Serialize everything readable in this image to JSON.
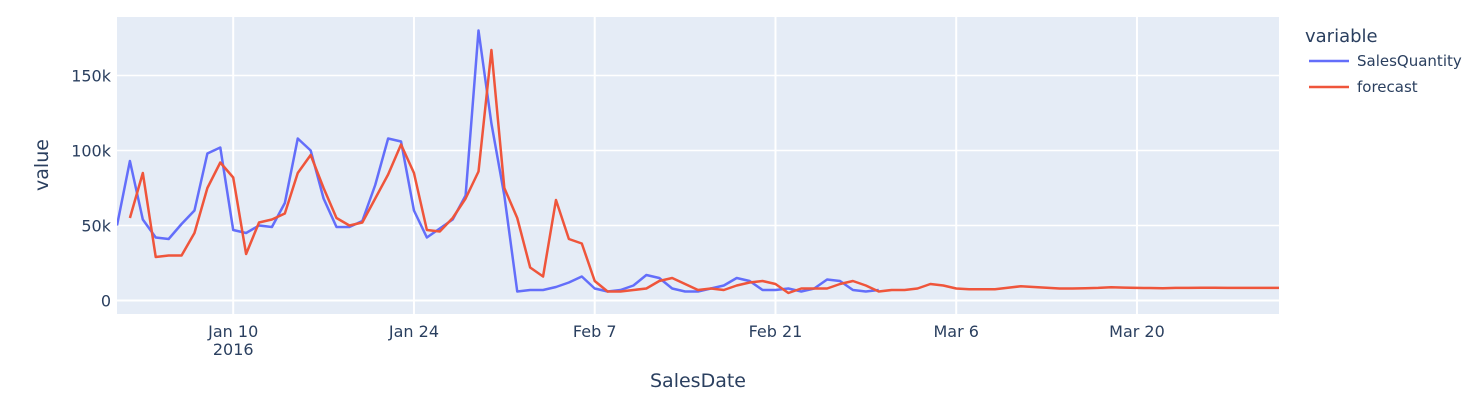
{
  "chart_data": {
    "type": "line",
    "xlabel": "SalesDate",
    "ylabel": "value",
    "x_start": "2016-01-01",
    "x_end": "2016-03-31",
    "ylim": [
      -9000,
      189000
    ],
    "x_ticks": [
      {
        "date": "2016-01-10",
        "label": "Jan 10",
        "sublabel": "2016"
      },
      {
        "date": "2016-01-24",
        "label": "Jan 24",
        "sublabel": ""
      },
      {
        "date": "2016-02-07",
        "label": "Feb 7",
        "sublabel": ""
      },
      {
        "date": "2016-02-21",
        "label": "Feb 21",
        "sublabel": ""
      },
      {
        "date": "2016-03-06",
        "label": "Mar 6",
        "sublabel": ""
      },
      {
        "date": "2016-03-20",
        "label": "Mar 20",
        "sublabel": ""
      }
    ],
    "y_ticks": [
      {
        "value": 0,
        "label": "0"
      },
      {
        "value": 50000,
        "label": "50k"
      },
      {
        "value": 100000,
        "label": "100k"
      },
      {
        "value": 150000,
        "label": "150k"
      }
    ],
    "grid": true,
    "legend": {
      "title": "variable",
      "placement": "top-right"
    },
    "series": [
      {
        "name": "SalesQuantity",
        "color": "#636efa",
        "x": [
          "2016-01-01",
          "2016-01-02",
          "2016-01-03",
          "2016-01-04",
          "2016-01-05",
          "2016-01-06",
          "2016-01-07",
          "2016-01-08",
          "2016-01-09",
          "2016-01-10",
          "2016-01-11",
          "2016-01-12",
          "2016-01-13",
          "2016-01-14",
          "2016-01-15",
          "2016-01-16",
          "2016-01-17",
          "2016-01-18",
          "2016-01-19",
          "2016-01-20",
          "2016-01-21",
          "2016-01-22",
          "2016-01-23",
          "2016-01-24",
          "2016-01-25",
          "2016-01-26",
          "2016-01-27",
          "2016-01-28",
          "2016-01-29",
          "2016-01-30",
          "2016-01-31",
          "2016-02-01",
          "2016-02-02",
          "2016-02-03",
          "2016-02-04",
          "2016-02-05",
          "2016-02-06",
          "2016-02-07",
          "2016-02-08",
          "2016-02-09",
          "2016-02-10",
          "2016-02-11",
          "2016-02-12",
          "2016-02-13",
          "2016-02-14",
          "2016-02-15",
          "2016-02-16",
          "2016-02-17",
          "2016-02-18",
          "2016-02-19",
          "2016-02-20",
          "2016-02-21",
          "2016-02-22",
          "2016-02-23",
          "2016-02-24",
          "2016-02-25",
          "2016-02-26",
          "2016-02-27",
          "2016-02-28",
          "2016-02-29"
        ],
        "y": [
          50000,
          93000,
          54000,
          42000,
          41000,
          51000,
          60000,
          98000,
          102000,
          47000,
          45000,
          50000,
          49000,
          65000,
          108000,
          100000,
          68000,
          49000,
          49000,
          53000,
          77000,
          108000,
          106000,
          60000,
          42000,
          48000,
          54000,
          70000,
          180000,
          118000,
          70000,
          6000,
          7000,
          7000,
          9000,
          12000,
          16000,
          8000,
          6000,
          7000,
          10000,
          17000,
          15000,
          8000,
          6000,
          6000,
          8000,
          10000,
          15000,
          13000,
          7000,
          7000,
          8000,
          6000,
          8000,
          14000,
          13000,
          7000,
          6000,
          7000
        ]
      },
      {
        "name": "forecast",
        "color": "#ef553b",
        "x": [
          "2016-01-02",
          "2016-01-03",
          "2016-01-04",
          "2016-01-05",
          "2016-01-06",
          "2016-01-07",
          "2016-01-08",
          "2016-01-09",
          "2016-01-10",
          "2016-01-11",
          "2016-01-12",
          "2016-01-13",
          "2016-01-14",
          "2016-01-15",
          "2016-01-16",
          "2016-01-17",
          "2016-01-18",
          "2016-01-19",
          "2016-01-20",
          "2016-01-21",
          "2016-01-22",
          "2016-01-23",
          "2016-01-24",
          "2016-01-25",
          "2016-01-26",
          "2016-01-27",
          "2016-01-28",
          "2016-01-29",
          "2016-01-30",
          "2016-01-31",
          "2016-02-01",
          "2016-02-02",
          "2016-02-03",
          "2016-02-04",
          "2016-02-05",
          "2016-02-06",
          "2016-02-07",
          "2016-02-08",
          "2016-02-09",
          "2016-02-10",
          "2016-02-11",
          "2016-02-12",
          "2016-02-13",
          "2016-02-14",
          "2016-02-15",
          "2016-02-16",
          "2016-02-17",
          "2016-02-18",
          "2016-02-19",
          "2016-02-20",
          "2016-02-21",
          "2016-02-22",
          "2016-02-23",
          "2016-02-24",
          "2016-02-25",
          "2016-02-26",
          "2016-02-27",
          "2016-02-28",
          "2016-02-29",
          "2016-03-01",
          "2016-03-02",
          "2016-03-03",
          "2016-03-04",
          "2016-03-05",
          "2016-03-06",
          "2016-03-07",
          "2016-03-08",
          "2016-03-09",
          "2016-03-10",
          "2016-03-11",
          "2016-03-12",
          "2016-03-13",
          "2016-03-14",
          "2016-03-15",
          "2016-03-16",
          "2016-03-17",
          "2016-03-18",
          "2016-03-19",
          "2016-03-20",
          "2016-03-21",
          "2016-03-22",
          "2016-03-23",
          "2016-03-24",
          "2016-03-25",
          "2016-03-26",
          "2016-03-27",
          "2016-03-28",
          "2016-03-29",
          "2016-03-30",
          "2016-03-31"
        ],
        "y": [
          55000,
          85000,
          29000,
          30000,
          30000,
          45000,
          75000,
          92000,
          82000,
          31000,
          52000,
          54000,
          58000,
          85000,
          97000,
          75000,
          55000,
          50000,
          52000,
          68000,
          84000,
          104000,
          85000,
          47000,
          46000,
          55000,
          68000,
          86000,
          167000,
          75000,
          55000,
          22000,
          16000,
          67000,
          41000,
          38000,
          13000,
          6000,
          6000,
          7000,
          8000,
          13000,
          15000,
          11000,
          7000,
          8000,
          7000,
          10000,
          12000,
          13000,
          11000,
          5000,
          8000,
          8000,
          8000,
          11000,
          13000,
          10000,
          6000,
          7000,
          7000,
          8000,
          11000,
          10000,
          8000,
          7500,
          7500,
          7500,
          8500,
          9500,
          9000,
          8500,
          8000,
          8000,
          8200,
          8400,
          8800,
          8600,
          8400,
          8300,
          8200,
          8400,
          8400,
          8500,
          8500,
          8400,
          8400,
          8400,
          8400,
          8400
        ]
      }
    ]
  }
}
